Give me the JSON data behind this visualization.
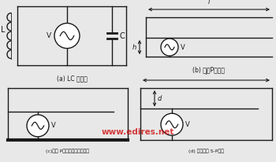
{
  "bg_color": "#e8e8e8",
  "line_color": "#1a1a1a",
  "watermark": "www.edires.net",
  "watermark_color": "#cc0000",
  "label_a": "(a) LC 振荡器",
  "label_b": "(b) 转化P型天线",
  "label_c": "(c)转化 P型天线和接地面折叠",
  "label_d": "(d) 折叠短片 S-P天线"
}
